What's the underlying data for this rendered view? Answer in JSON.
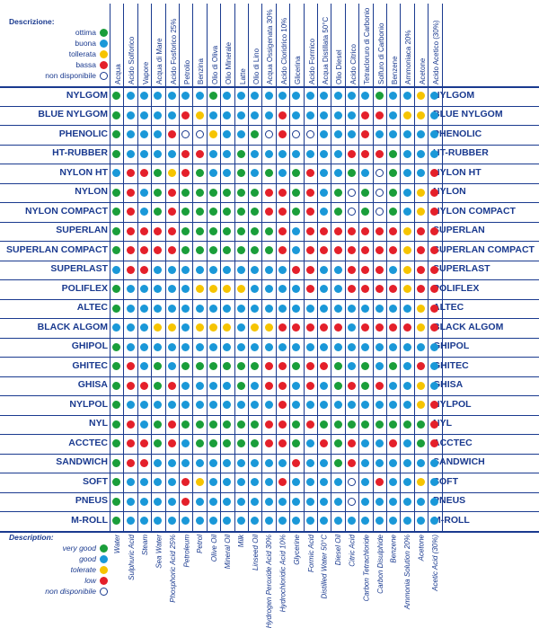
{
  "legend_it": {
    "title": "Descrizione:",
    "items": [
      {
        "label": "ottima",
        "key": "g"
      },
      {
        "label": "buona",
        "key": "b"
      },
      {
        "label": "tollerata",
        "key": "y"
      },
      {
        "label": "bassa",
        "key": "r"
      },
      {
        "label": "non disponibile",
        "key": "o"
      }
    ]
  },
  "legend_en": {
    "title": "Description:",
    "items": [
      {
        "label": "very good",
        "key": "g"
      },
      {
        "label": "good",
        "key": "b"
      },
      {
        "label": "tolerate",
        "key": "y"
      },
      {
        "label": "low",
        "key": "r"
      },
      {
        "label": "non disponibile",
        "key": "o"
      }
    ]
  },
  "colors": {
    "g": "#1a9e3a",
    "b": "#1a98d8",
    "y": "#f6c400",
    "r": "#e4202a",
    "o": "#ffffff"
  },
  "columns_it": [
    "Acqua",
    "Acido Solforico",
    "Vapore",
    "Acqua di Mare",
    "Acido Fosforico 25%",
    "Petrolio",
    "Benzina",
    "Olio di Oliva",
    "Olio Minerale",
    "Latte",
    "Olio di Lino",
    "Acqua Ossigenata 30%",
    "Acido Cloridrico 10%",
    "Glicerina",
    "Acido Formico",
    "Acqua Distillata 50°C",
    "Olio Diesel",
    "Acido Citrico",
    "Tetracloruro di Carbonio",
    "Solfuro di Carbonio",
    "Benzene",
    "Ammoniaca 20%",
    "Acetone",
    "Acido Acetico (30%)"
  ],
  "columns_en": [
    "Water",
    "Sulphuric Acid",
    "Steam",
    "Sea Water",
    "Phosphoric Acid 25%",
    "Petroleum",
    "Petrol",
    "Olive Oil",
    "Mineral Oil",
    "Milk",
    "Linseed Oil",
    "Hydrogen Peroxide Acid 30%",
    "Hydrochloridic Acid 10%",
    "Glycerine",
    "Formic Acid",
    "Distilled Water 50°C",
    "Diesel Oil",
    "Citric Acid",
    "Carbon Tetrachloride",
    "Carbon Disulphide",
    "Benzene",
    "Ammonia Solution 20%",
    "Acetone",
    "Acetic Acid (30%)"
  ],
  "rows": [
    {
      "name": "NYLGOM",
      "values": "gbbbbbbgbbbbbbbbbbbgbbyb"
    },
    {
      "name": "BLUE NYLGOM",
      "values": "gbbbbrybbbbbrbbbbbrrbyyb"
    },
    {
      "name": "PHENOLIC",
      "values": "gbbbrooybbgoroobbbrbbbbb"
    },
    {
      "name": "HT-RUBBER",
      "values": "gbbbbrrbbgbbbbbbbrrrgbbb"
    },
    {
      "name": "NYLON HT",
      "values": "brrgyrgbbgbgbgrbbgbogbbr"
    },
    {
      "name": "NYLON",
      "values": "grbgrggggggrrgrbgogogbyr"
    },
    {
      "name": "NYLON COMPACT",
      "values": "grbgrggggggrrgrbgogogbyr"
    },
    {
      "name": "SUPERLAN",
      "values": "grrrrgggggggrbrrrrrrryrr"
    },
    {
      "name": "SUPERLAN COMPACT",
      "values": "grrrrgggggggrbrrrrrrryrr"
    },
    {
      "name": "SUPERLAST",
      "values": "brrbbbbbbbbbbrrbbrrrbyrr"
    },
    {
      "name": "POLIFLEX",
      "values": "gbbbbbyyyybbbbrbbrrrryrr"
    },
    {
      "name": "ALTEC",
      "values": "gbbbbbbbbbbbbbbbbbbbbbyr"
    },
    {
      "name": "BLACK ALGOM",
      "values": "bbbyybyyybyyrrrrrbrrrryr"
    },
    {
      "name": "GHIPOL",
      "values": "gbbbbbbbbbbbbbbbbbbbbbbb"
    },
    {
      "name": "GHITEC",
      "values": "grbgbggggggrrgrrgbgbgbrb"
    },
    {
      "name": "GHISA",
      "values": "grrgrbbbbgbrrbrbgrgrbbyb"
    },
    {
      "name": "NYLPOL",
      "values": "gbbbbbbbbbbbrbbbbbbbbbyr"
    },
    {
      "name": "NYL",
      "values": "grbgrggggggrrgrggggggggr"
    },
    {
      "name": "ACCTEC",
      "values": "grrgrbgggggrrgbrgrbbrbgr"
    },
    {
      "name": "SANDWICH",
      "values": "grrbbbbbbbbbbrbbgrbbbbbb"
    },
    {
      "name": "SOFT",
      "values": "gbbbbrybbbbbrbbbbobrbbyb"
    },
    {
      "name": "PNEUS",
      "values": "gbbbbrbbbbbbbbbbbobbbbbb"
    },
    {
      "name": "M-ROLL",
      "values": "gbbbbbbbbbbbbbbbbbbbbbbb"
    }
  ]
}
